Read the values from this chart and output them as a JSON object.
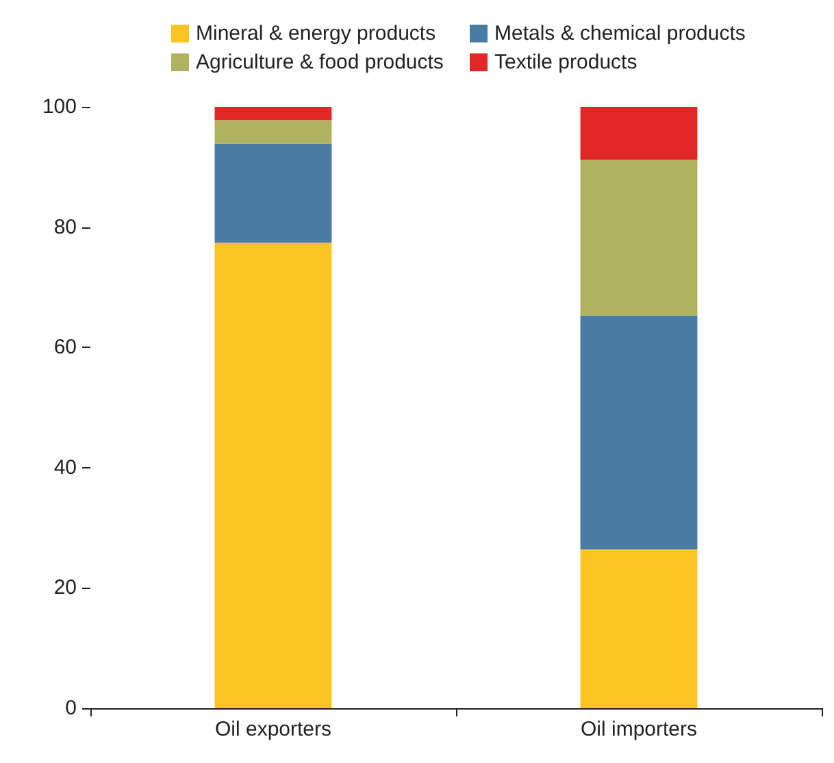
{
  "chart_data": {
    "type": "bar",
    "stacked": true,
    "categories": [
      "Oil exporters",
      "Oil importers"
    ],
    "series": [
      {
        "name": "Mineral & energy products",
        "color": "#fdc323",
        "values": [
          77.4,
          26.4
        ]
      },
      {
        "name": "Metals & chemical products",
        "color": "#497ca5",
        "values": [
          16.5,
          38.9
        ]
      },
      {
        "name": "Agriculture & food products",
        "color": "#afb25f",
        "values": [
          3.9,
          25.9
        ]
      },
      {
        "name": "Textile products",
        "color": "#e32726",
        "values": [
          2.2,
          8.8
        ]
      }
    ],
    "ylim": [
      0,
      100
    ],
    "yticks": [
      0,
      20,
      40,
      60,
      80,
      100
    ],
    "grid": false,
    "legend": "top"
  }
}
